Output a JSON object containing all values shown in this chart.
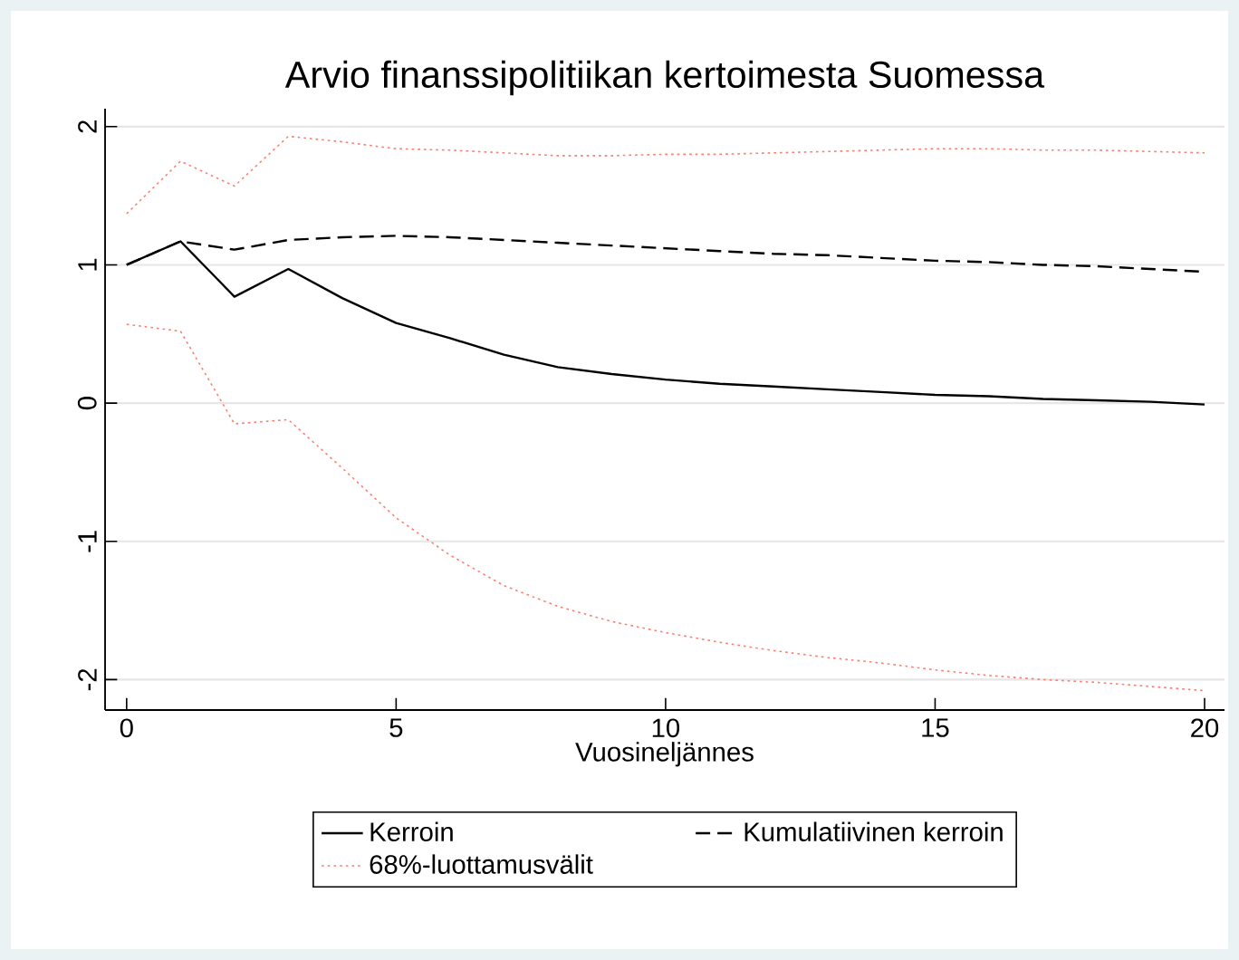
{
  "chart_data": {
    "type": "line",
    "title": "Arvio finanssipolitiikan kertoimesta Suomessa",
    "xlabel": "Vuosineljännes",
    "x": [
      0,
      1,
      2,
      3,
      4,
      5,
      6,
      7,
      8,
      9,
      10,
      11,
      12,
      13,
      14,
      15,
      16,
      17,
      18,
      19,
      20
    ],
    "series": [
      {
        "name": "Kerroin",
        "color": "#000000",
        "line_style": "solid",
        "values": [
          1,
          1.17,
          0.77,
          0.97,
          0.76,
          0.58,
          0.47,
          0.35,
          0.26,
          0.21,
          0.17,
          0.14,
          0.12,
          0.1,
          0.08,
          0.06,
          0.05,
          0.03,
          0.02,
          0.01,
          -0.01
        ]
      },
      {
        "name": "Kumulatiivinen kerroin",
        "color": "#000000",
        "line_style": "dashed",
        "values": [
          1,
          1.17,
          1.11,
          1.18,
          1.2,
          1.21,
          1.2,
          1.18,
          1.16,
          1.14,
          1.12,
          1.1,
          1.08,
          1.07,
          1.05,
          1.03,
          1.02,
          1.0,
          0.99,
          0.97,
          0.95
        ]
      },
      {
        "name": "68%-luottamusvälit",
        "color": "#fa8072",
        "line_style": "dotted",
        "values": [
          0.57,
          0.52,
          -0.15,
          -0.12,
          -0.47,
          -0.83,
          -1.1,
          -1.32,
          -1.47,
          -1.58,
          -1.66,
          -1.73,
          -1.79,
          -1.84,
          -1.88,
          -1.93,
          -1.97,
          -2.0,
          -2.02,
          -2.05,
          -2.08
        ]
      },
      {
        "color": "#fa8072",
        "line_style": "dotted",
        "values": [
          1.37,
          1.75,
          1.57,
          1.93,
          1.89,
          1.84,
          1.83,
          1.81,
          1.79,
          1.79,
          1.8,
          1.8,
          1.81,
          1.82,
          1.83,
          1.84,
          1.84,
          1.83,
          1.83,
          1.82,
          1.81
        ]
      }
    ],
    "xlim": [
      -0.4,
      20.37
    ],
    "ylim": [
      -2.22,
      2.13
    ],
    "xticks": [
      0,
      5,
      10,
      15,
      20
    ],
    "yticks": [
      -2,
      -1,
      0,
      1,
      2
    ],
    "grid": "y",
    "legend": "bottom",
    "marker": "none"
  }
}
